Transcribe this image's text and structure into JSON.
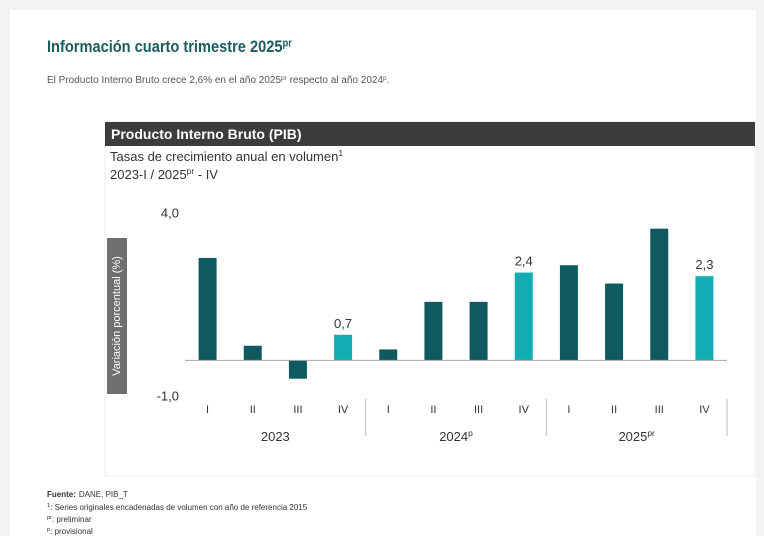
{
  "page": {
    "title": "Información cuarto trimestre 2025",
    "title_sup": "pr",
    "intro": [
      {
        "text": "El Producto Interno Bruto crece 2,6% en el año 2025"
      },
      {
        "sup": "pr"
      },
      {
        "text": " respecto al año 2024"
      },
      {
        "sup": "p"
      },
      {
        "text": "."
      }
    ],
    "source_label": "Fuente:",
    "source": "DANE, PIB_T",
    "notes": [
      {
        "mark": "1",
        "text": ": Series originales encadenadas de volumen con año de referencia 2015"
      },
      {
        "mark": "pr",
        "text": ": preliminar"
      },
      {
        "mark": "p",
        "text": ": provisional"
      }
    ]
  },
  "chart_data": {
    "type": "bar",
    "title": "Producto Interno Bruto (PIB)",
    "subtitle": [
      {
        "text": "Tasas de crecimiento anual en volumen"
      },
      {
        "sup": "1"
      }
    ],
    "subtitle2": [
      {
        "text": "2023-I / 2025"
      },
      {
        "sup": "pr"
      },
      {
        "text": " - IV"
      }
    ],
    "y_label": "Variación porcentual (%)",
    "categories": [
      "I",
      "II",
      "III",
      "IV",
      "I",
      "II",
      "III",
      "IV",
      "I",
      "II",
      "III",
      "IV"
    ],
    "groups": [
      {
        "label": "2023",
        "size": 4
      },
      {
        "label": "2024",
        "sup": "p",
        "size": 4
      },
      {
        "label": "2025",
        "sup": "pr",
        "size": 4
      }
    ],
    "values": [
      2.8,
      0.4,
      -0.5,
      0.7,
      0.3,
      1.6,
      1.6,
      2.4,
      2.6,
      2.1,
      3.6,
      2.3
    ],
    "value_labels": [
      null,
      null,
      null,
      "0,7",
      null,
      null,
      null,
      "2,4",
      null,
      null,
      null,
      "2,3"
    ],
    "colors": [
      "#0e5a60",
      "#0e5a60",
      "#0e5a60",
      "#12adb3",
      "#0e5a60",
      "#0e5a60",
      "#0e5a60",
      "#12adb3",
      "#0e5a60",
      "#0e5a60",
      "#0e5a60",
      "#12adb3"
    ],
    "ylim": [
      -1,
      4
    ],
    "yticks": [
      {
        "value": 4,
        "label": "4,0"
      },
      {
        "value": -1,
        "label": "-1,0"
      }
    ]
  }
}
